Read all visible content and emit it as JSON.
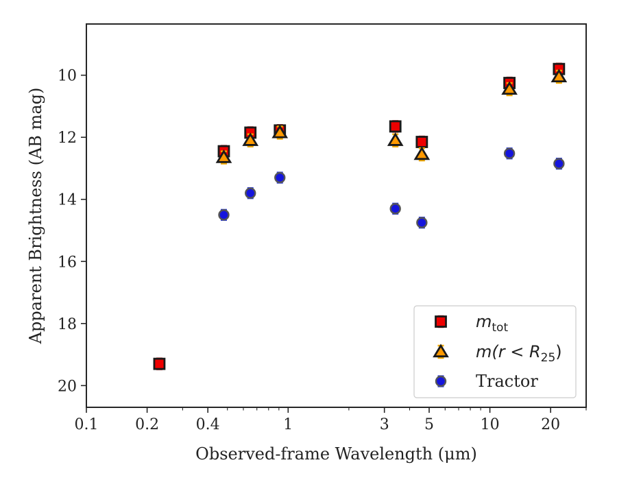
{
  "chart_data": {
    "type": "scatter",
    "xlabel": "Observed-frame Wavelength (μm)",
    "ylabel": "Apparent Brightness (AB mag)",
    "xscale": "log",
    "xlim": [
      0.1,
      30
    ],
    "ylim": [
      20.7,
      8.35
    ],
    "y_inverted": true,
    "grid": false,
    "legend_position": "lower-right",
    "x_ticks": [
      {
        "value": 0.1,
        "label": "0.1"
      },
      {
        "value": 0.2,
        "label": "0.2"
      },
      {
        "value": 0.4,
        "label": "0.4"
      },
      {
        "value": 1,
        "label": "1"
      },
      {
        "value": 3,
        "label": "3"
      },
      {
        "value": 5,
        "label": "5"
      },
      {
        "value": 10,
        "label": "10"
      },
      {
        "value": 20,
        "label": "20"
      }
    ],
    "y_ticks": [
      {
        "value": 10,
        "label": "10"
      },
      {
        "value": 12,
        "label": "12"
      },
      {
        "value": 14,
        "label": "14"
      },
      {
        "value": 16,
        "label": "16"
      },
      {
        "value": 18,
        "label": "18"
      },
      {
        "value": 20,
        "label": "20"
      }
    ],
    "series": [
      {
        "name": "m_tot",
        "legend_main": "m",
        "legend_sub": "tot",
        "marker": "square",
        "color": "#ee0000",
        "errcolor": "#cc0000",
        "x": [
          0.23,
          0.48,
          0.65,
          0.91,
          3.4,
          4.6,
          12.5,
          22.0
        ],
        "y": [
          19.3,
          12.45,
          11.85,
          11.78,
          11.65,
          12.15,
          10.25,
          9.8
        ]
      },
      {
        "name": "m(r < R_25)",
        "legend_main": "m(r < R",
        "legend_sub": "25",
        "legend_tail": ")",
        "marker": "triangle",
        "color": "#ff9900",
        "errcolor": "#f2a900",
        "x": [
          0.48,
          0.65,
          0.91,
          3.4,
          4.6,
          12.5,
          22.0
        ],
        "y": [
          12.65,
          12.1,
          11.85,
          12.1,
          12.55,
          10.45,
          10.05
        ]
      },
      {
        "name": "Tractor",
        "marker": "circle",
        "color": "#1515dd",
        "errcolor": "#2a3ad0",
        "x": [
          0.48,
          0.65,
          0.91,
          3.4,
          4.6,
          12.5,
          22.0
        ],
        "y": [
          14.5,
          13.8,
          13.3,
          14.3,
          14.75,
          12.52,
          12.85
        ]
      }
    ]
  }
}
